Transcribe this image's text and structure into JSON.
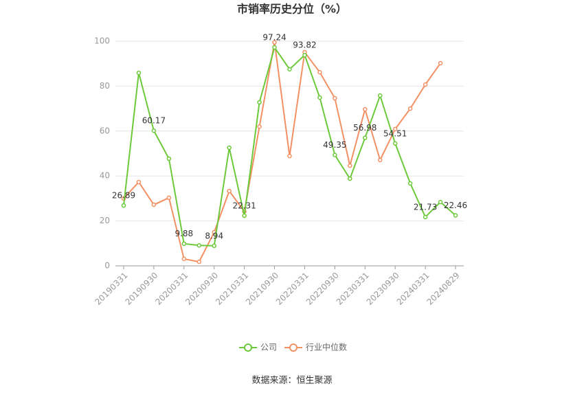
{
  "chart_data": {
    "type": "line",
    "title": "市销率历史分位（%）",
    "source": "数据来源：恒生聚源",
    "categories": [
      "20190331",
      null,
      "20190930",
      null,
      "20200331",
      null,
      "20200930",
      null,
      "20210331",
      null,
      "20210930",
      null,
      "20220331",
      null,
      "20220930",
      null,
      "20230331",
      null,
      "20230930",
      null,
      "20240331",
      null,
      "20240829"
    ],
    "series": [
      {
        "name": "公司",
        "color": "#6cc93a",
        "values": [
          26.89,
          85.9,
          60.17,
          47.7,
          9.88,
          9.1,
          8.94,
          52.6,
          22.31,
          72.8,
          97.24,
          87.5,
          93.82,
          74.9,
          49.35,
          38.8,
          56.98,
          75.8,
          54.51,
          36.7,
          21.73,
          28.4,
          22.46
        ]
      },
      {
        "name": "行业中位数",
        "color": "#f39063",
        "values": [
          30,
          37.3,
          27.2,
          30.3,
          3.1,
          1.8,
          15,
          33.3,
          24.2,
          62,
          99.5,
          48.9,
          95.1,
          86.2,
          74.6,
          44.6,
          69.7,
          47.1,
          60.9,
          70,
          80.7,
          90.2,
          null
        ]
      }
    ],
    "ylim": [
      0,
      100
    ],
    "yticks": [
      0,
      20,
      40,
      60,
      80,
      100
    ],
    "grid": true,
    "legend": "bottom"
  }
}
